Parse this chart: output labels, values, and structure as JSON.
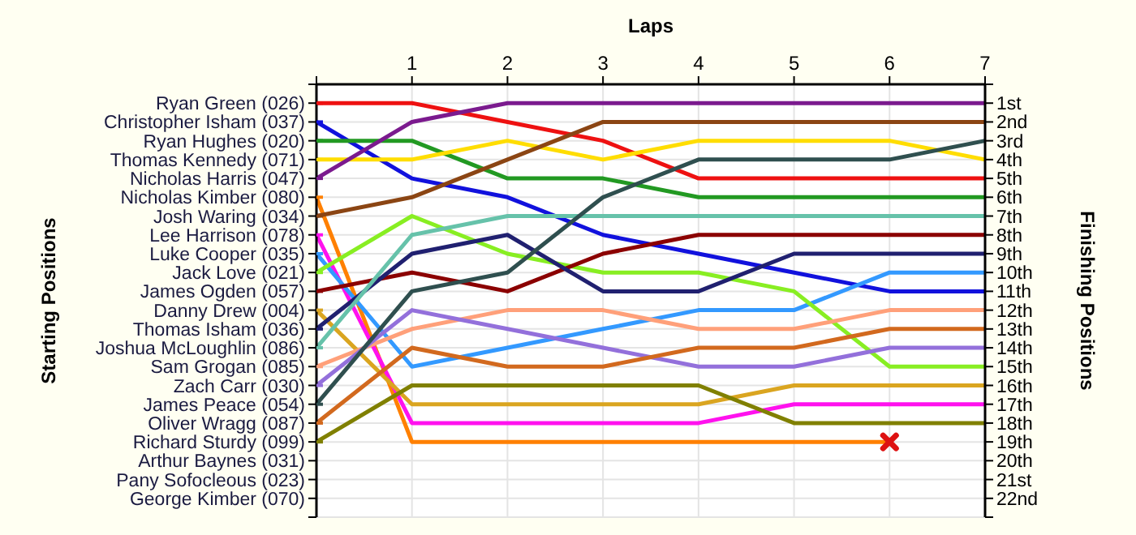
{
  "chart_data": {
    "type": "line",
    "title": "Laps",
    "legend_title": "Starting Positions",
    "ylabel": "Finishing Positions",
    "legend": "left",
    "annotations": [
      "Arthur Baynes (031)",
      "Pany Sofocleous (023)",
      "George Kimber (070)"
    ],
    "x": [
      0,
      1,
      2,
      3,
      4,
      5,
      6,
      7
    ],
    "xlim": [
      0,
      7
    ],
    "xticks": [
      {
        "value": 0,
        "label": null
      },
      1,
      2,
      3,
      4,
      5,
      6,
      7
    ],
    "ylim": [
      23,
      0
    ],
    "yticks": [
      {
        "value": 0,
        "label": null
      },
      {
        "value": 1,
        "label": "1st"
      },
      {
        "value": 2,
        "label": "2nd"
      },
      {
        "value": 3,
        "label": "3rd"
      },
      {
        "value": 4,
        "label": "4th"
      },
      {
        "value": 5,
        "label": "5th"
      },
      {
        "value": 6,
        "label": "6th"
      },
      {
        "value": 7,
        "label": "7th"
      },
      {
        "value": 8,
        "label": "8th"
      },
      {
        "value": 9,
        "label": "9th"
      },
      {
        "value": 10,
        "label": "10th"
      },
      {
        "value": 11,
        "label": "11th"
      },
      {
        "value": 12,
        "label": "12th"
      },
      {
        "value": 13,
        "label": "13th"
      },
      {
        "value": 14,
        "label": "14th"
      },
      {
        "value": 15,
        "label": "15th"
      },
      {
        "value": 16,
        "label": "16th"
      },
      {
        "value": 17,
        "label": "17th"
      },
      {
        "value": 18,
        "label": "18th"
      },
      {
        "value": 19,
        "label": "19th"
      },
      {
        "value": 20,
        "label": "20th"
      },
      {
        "value": 21,
        "label": "21st"
      },
      {
        "value": 22,
        "label": "22nd"
      },
      {
        "value": 23,
        "label": null
      }
    ],
    "grid": true,
    "marker": "none",
    "line_style": "solid",
    "series": [
      {
        "name": "Ryan Green (026)",
        "color": "#ee1111",
        "values": [
          1,
          1,
          2,
          3,
          5,
          5,
          5,
          5
        ]
      },
      {
        "name": "Christopher Isham (037)",
        "color": "#1111dd",
        "values": [
          2,
          5,
          6,
          8,
          9,
          10,
          11,
          11
        ]
      },
      {
        "name": "Ryan Hughes (020)",
        "color": "#229922",
        "values": [
          3,
          3,
          5,
          5,
          6,
          6,
          6,
          6
        ]
      },
      {
        "name": "Thomas Kennedy (071)",
        "color": "#ffdd00",
        "values": [
          4,
          4,
          3,
          4,
          3,
          3,
          3,
          4
        ]
      },
      {
        "name": "Nicholas Harris (047)",
        "color": "#7b1a8e",
        "values": [
          5,
          2,
          1,
          1,
          1,
          1,
          1,
          1
        ]
      },
      {
        "name": "Nicholas Kimber (080)",
        "color": "#ff8000",
        "values": [
          6,
          19,
          19,
          19,
          19,
          19,
          19,
          null
        ]
      },
      {
        "name": "Josh Waring (034)",
        "color": "#8b4513",
        "values": [
          7,
          6,
          4,
          2,
          2,
          2,
          2,
          2
        ]
      },
      {
        "name": "Lee Harrison (078)",
        "color": "#ff11ee",
        "values": [
          8,
          18,
          18,
          18,
          18,
          17,
          17,
          17
        ]
      },
      {
        "name": "Luke Cooper (035)",
        "color": "#3399ff",
        "values": [
          9,
          15,
          14,
          13,
          12,
          12,
          10,
          10
        ]
      },
      {
        "name": "Jack Love (021)",
        "color": "#88ee22",
        "values": [
          10,
          7,
          9,
          10,
          10,
          11,
          15,
          15
        ]
      },
      {
        "name": "James Ogden (057)",
        "color": "#8b0000",
        "values": [
          11,
          10,
          11,
          9,
          8,
          8,
          8,
          8
        ]
      },
      {
        "name": "Danny Drew (004)",
        "color": "#daa520",
        "values": [
          12,
          17,
          17,
          17,
          17,
          16,
          16,
          16
        ]
      },
      {
        "name": "Thomas Isham (036)",
        "color": "#202070",
        "values": [
          13,
          9,
          8,
          11,
          11,
          9,
          9,
          9
        ]
      },
      {
        "name": "Joshua McLoughlin (086)",
        "color": "#66c2aa",
        "values": [
          14,
          8,
          7,
          7,
          7,
          7,
          7,
          7
        ]
      },
      {
        "name": "Sam Grogan (085)",
        "color": "#ffa07a",
        "values": [
          15,
          13,
          12,
          12,
          13,
          13,
          12,
          12
        ]
      },
      {
        "name": "Zach Carr (030)",
        "color": "#9370db",
        "values": [
          16,
          12,
          13,
          14,
          15,
          15,
          14,
          14
        ]
      },
      {
        "name": "James Peace (054)",
        "color": "#2f4f4f",
        "values": [
          17,
          11,
          10,
          6,
          4,
          4,
          4,
          3
        ]
      },
      {
        "name": "Oliver Wragg (087)",
        "color": "#d2691e",
        "values": [
          18,
          14,
          15,
          15,
          14,
          14,
          13,
          13
        ]
      },
      {
        "name": "Richard Sturdy (099)",
        "color": "#808000",
        "values": [
          19,
          16,
          16,
          16,
          16,
          18,
          18,
          18
        ]
      },
      {
        "type": "scatter",
        "marker": "cross",
        "color": "#dd1111",
        "x": [
          6
        ],
        "values": [
          19
        ]
      }
    ]
  }
}
